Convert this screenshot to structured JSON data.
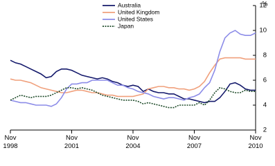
{
  "chart_data": {
    "type": "line",
    "y_label": "%",
    "x": [
      "1998-11",
      "1999-02",
      "1999-05",
      "1999-08",
      "1999-11",
      "2000-02",
      "2000-05",
      "2000-08",
      "2000-11",
      "2001-02",
      "2001-05",
      "2001-08",
      "2001-11",
      "2002-02",
      "2002-05",
      "2002-08",
      "2002-11",
      "2003-02",
      "2003-05",
      "2003-08",
      "2003-11",
      "2004-02",
      "2004-05",
      "2004-08",
      "2004-11",
      "2005-02",
      "2005-05",
      "2005-08",
      "2005-11",
      "2006-02",
      "2006-05",
      "2006-08",
      "2006-11",
      "2007-02",
      "2007-05",
      "2007-08",
      "2007-11",
      "2008-02",
      "2008-05",
      "2008-08",
      "2008-11",
      "2009-02",
      "2009-05",
      "2009-08",
      "2009-11",
      "2010-02",
      "2010-05",
      "2010-08",
      "2010-11"
    ],
    "series": [
      {
        "name": "Australia",
        "color": "#14196b",
        "dash": "solid",
        "values": [
          7.6,
          7.4,
          7.3,
          7.1,
          6.9,
          6.7,
          6.5,
          6.2,
          6.3,
          6.7,
          6.9,
          6.9,
          6.8,
          6.6,
          6.4,
          6.3,
          6.2,
          6.1,
          6.2,
          6.1,
          5.9,
          5.8,
          5.6,
          5.5,
          5.6,
          5.5,
          5.1,
          5.3,
          5.1,
          5.0,
          5.0,
          4.9,
          4.9,
          4.7,
          4.5,
          4.5,
          4.4,
          4.3,
          4.2,
          4.3,
          4.3,
          4.6,
          5.1,
          5.7,
          5.8,
          5.6,
          5.3,
          5.2,
          5.2
        ]
      },
      {
        "name": "United Kingdom",
        "color": "#f0a07c",
        "dash": "solid",
        "values": [
          6.1,
          6.0,
          6.0,
          5.9,
          5.8,
          5.6,
          5.4,
          5.3,
          5.2,
          5.1,
          5.0,
          5.0,
          5.1,
          5.2,
          5.2,
          5.1,
          5.0,
          5.0,
          4.9,
          4.8,
          4.8,
          4.7,
          4.7,
          4.7,
          4.7,
          4.8,
          4.9,
          5.3,
          5.4,
          5.5,
          5.5,
          5.4,
          5.4,
          5.3,
          5.3,
          5.2,
          5.3,
          5.5,
          5.9,
          6.6,
          7.2,
          7.7,
          7.8,
          7.8,
          7.8,
          7.8,
          7.7,
          7.7,
          7.7
        ]
      },
      {
        "name": "United States",
        "color": "#8c8ce8",
        "dash": "solid",
        "values": [
          4.4,
          4.3,
          4.2,
          4.2,
          4.1,
          4.0,
          4.0,
          4.0,
          3.9,
          4.1,
          4.6,
          5.3,
          5.7,
          5.7,
          5.8,
          5.8,
          6.0,
          6.0,
          6.0,
          6.0,
          5.8,
          5.6,
          5.6,
          5.4,
          5.3,
          5.1,
          5.0,
          4.9,
          4.7,
          4.6,
          4.5,
          4.6,
          4.6,
          4.5,
          4.4,
          4.6,
          4.7,
          4.9,
          5.4,
          5.8,
          6.8,
          8.3,
          9.4,
          9.8,
          10.0,
          9.7,
          9.6,
          9.6,
          9.8
        ]
      },
      {
        "name": "Japan",
        "color": "#1d4a28",
        "dash": "dotted",
        "values": [
          4.4,
          4.6,
          4.8,
          4.7,
          4.6,
          4.7,
          4.7,
          4.7,
          4.8,
          5.0,
          5.2,
          5.4,
          5.4,
          5.3,
          5.4,
          5.3,
          5.2,
          5.0,
          4.8,
          4.7,
          4.6,
          4.5,
          4.4,
          4.4,
          4.4,
          4.3,
          4.1,
          4.2,
          4.1,
          4.0,
          3.9,
          3.8,
          3.8,
          4.0,
          4.0,
          4.0,
          4.0,
          4.2,
          4.0,
          4.4,
          5.0,
          5.4,
          5.3,
          5.1,
          5.0,
          5.0,
          5.2,
          5.1,
          5.1
        ]
      }
    ],
    "xlim": [
      "1998-11",
      "2010-11"
    ],
    "xticks": [
      {
        "value": "1998-11",
        "label": "Nov 1998"
      },
      {
        "value": "2001-11",
        "label": "Nov 2001"
      },
      {
        "value": "2004-11",
        "label": "Nov 2004"
      },
      {
        "value": "2007-11",
        "label": "Nov 2007"
      },
      {
        "value": "2010-11",
        "label": "Nov 2010"
      }
    ],
    "ylim": [
      2,
      12
    ],
    "yticks": [
      2,
      4,
      6,
      8,
      10,
      12
    ],
    "y_axis_side": "right",
    "legend": "top"
  }
}
